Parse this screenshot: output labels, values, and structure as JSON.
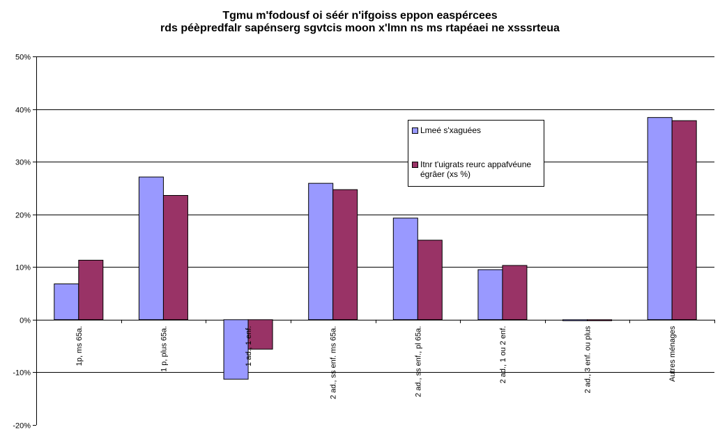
{
  "chart_data": {
    "type": "bar",
    "title_lines": [
      "Tgmu m'fodousf oi séér n'ifgoiss eppon easpércees",
      "rds péèpredfalr sapénserg sgvtcis moon x'lmn ns ms rtapéaei ne xsssrteua"
    ],
    "categories": [
      "1p, ms 65a.",
      "1 p, plus 65a.",
      "1 ad., 1 enf.",
      "2 ad., ss enf. ms 65a.",
      "2 ad., ss enf., pl 65a.",
      "2 ad., 1 ou 2 enf.",
      "2 ad., 3 enf. ou plus",
      "Autres ménages"
    ],
    "series": [
      {
        "name": "Lmeé s'xaguées",
        "color": "#9999ff",
        "values": [
          6.8,
          27.1,
          -11.3,
          25.9,
          19.3,
          9.5,
          -0.2,
          38.4
        ]
      },
      {
        "name": "Itnr t'uigrats reurc appafvéune égrâer (xs %)",
        "color": "#993366",
        "values": [
          11.3,
          23.6,
          -5.6,
          24.7,
          15.1,
          10.3,
          -0.2,
          37.8
        ]
      }
    ],
    "ylim": [
      -20,
      50
    ],
    "yticks": [
      -20,
      -10,
      0,
      10,
      20,
      30,
      40,
      50
    ],
    "ytick_labels": [
      "-20%",
      "-10%",
      "0%",
      "10%",
      "20%",
      "30%",
      "40%",
      "50%"
    ],
    "grid": true,
    "legend_position": "upper-right-inside"
  }
}
